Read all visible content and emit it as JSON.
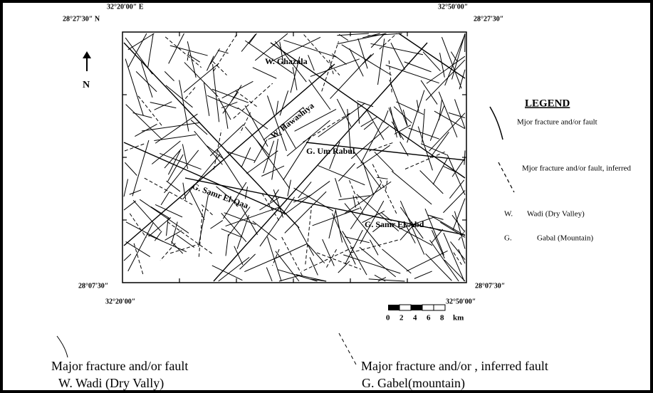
{
  "coords": {
    "top_left_lat": "28°27′30″ N",
    "top_left_lon": "32°20′00″ E",
    "top_right_lon": "32°50′00″",
    "top_right_lat": "28°27′30″",
    "bottom_left_lat": "28°07′30″",
    "bottom_left_lon": "32°20′00″",
    "bottom_right_lat": "28°07′30″",
    "bottom_right_lon": "32°50′00″"
  },
  "north": "N",
  "places": [
    "W. Ghazala",
    "W. Hawashiya",
    "G. Um Rabul",
    "G. Samr El-Qaa",
    "G. Samr El-Abd"
  ],
  "legend": {
    "title": "LEGEND",
    "fault": "Mjor fracture and/or fault",
    "inferred": "Mjor fracture and/or fault, inferred",
    "w_abbr": "W.",
    "w_text": "Wadi (Dry Valley)",
    "g_abbr": "G.",
    "g_text": "Gabal (Mountain)"
  },
  "scale": {
    "ticks": [
      "0",
      "2",
      "4",
      "6",
      "8"
    ],
    "unit": "km"
  },
  "caption": {
    "fault": "Major fracture and/or fault",
    "wadi": "W. Wadi (Dry Vally)",
    "inferred": "Major fracture and/or , inferred fault",
    "gabal": "G. Gabel(mountain)"
  }
}
